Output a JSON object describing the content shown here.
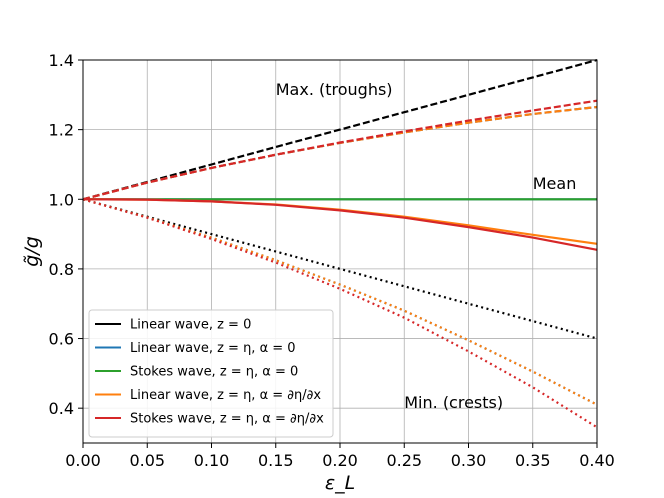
{
  "chart_data": {
    "type": "line",
    "title": "",
    "xlabel": "ε_L",
    "ylabel": "g̃/g",
    "xlim": [
      0.0,
      0.4
    ],
    "ylim": [
      0.3,
      1.4
    ],
    "x_ticks": [
      "0.00",
      "0.05",
      "0.10",
      "0.15",
      "0.20",
      "0.25",
      "0.30",
      "0.35",
      "0.40"
    ],
    "y_ticks": [
      "0.4",
      "0.6",
      "0.8",
      "1.0",
      "1.2",
      "1.4"
    ],
    "grid": true,
    "legend_position": "lower-left",
    "x": [
      0.0,
      0.05,
      0.1,
      0.15,
      0.2,
      0.25,
      0.3,
      0.35,
      0.4
    ],
    "series": [
      {
        "name": "Linear wave, z=0",
        "color": "#000000",
        "group": "max",
        "values": [
          1.0,
          1.05,
          1.1,
          1.15,
          1.2,
          1.25,
          1.3,
          1.35,
          1.4
        ]
      },
      {
        "name": "Linear wave, z=0",
        "color": "#000000",
        "group": "min",
        "values": [
          1.0,
          0.95,
          0.9,
          0.85,
          0.8,
          0.75,
          0.7,
          0.65,
          0.6
        ]
      },
      {
        "name": "Linear wave, z=η, α=0",
        "color": "#1f77b4",
        "group": "max",
        "values": [
          1.0,
          1.048,
          1.09,
          1.128,
          1.162,
          1.192,
          1.22,
          1.245,
          1.265
        ]
      },
      {
        "name": "Linear wave, z=η, α=0",
        "color": "#1f77b4",
        "group": "min",
        "values": [
          1.0,
          0.948,
          0.89,
          0.825,
          0.755,
          0.68,
          0.595,
          0.505,
          0.41
        ]
      },
      {
        "name": "Linear wave, z=η, α=0",
        "color": "#1f77b4",
        "group": "mean",
        "values": [
          1.0,
          1.0,
          1.0,
          1.0,
          1.0,
          1.0,
          1.0,
          1.0,
          1.0
        ]
      },
      {
        "name": "Stokes wave, z=η, α=0",
        "color": "#2ca02c",
        "group": "mean",
        "values": [
          1.0,
          1.0,
          1.0,
          1.0,
          1.0,
          1.0,
          1.0,
          1.0,
          1.0
        ]
      },
      {
        "name": "Linear wave, z=η, α=∂η/∂x",
        "color": "#ff7f0e",
        "group": "max",
        "values": [
          1.0,
          1.048,
          1.09,
          1.128,
          1.162,
          1.192,
          1.22,
          1.245,
          1.265
        ]
      },
      {
        "name": "Linear wave, z=η, α=∂η/∂x",
        "color": "#ff7f0e",
        "group": "mean",
        "values": [
          1.0,
          0.999,
          0.994,
          0.985,
          0.97,
          0.95,
          0.925,
          0.898,
          0.872
        ]
      },
      {
        "name": "Linear wave, z=η, α=∂η/∂x",
        "color": "#ff7f0e",
        "group": "min",
        "values": [
          1.0,
          0.948,
          0.89,
          0.825,
          0.755,
          0.68,
          0.595,
          0.505,
          0.41
        ]
      },
      {
        "name": "Stokes wave, z=η, α=∂η/∂x",
        "color": "#d62728",
        "group": "max",
        "values": [
          1.0,
          1.048,
          1.09,
          1.128,
          1.163,
          1.195,
          1.226,
          1.255,
          1.283
        ]
      },
      {
        "name": "Stokes wave, z=η, α=∂η/∂x",
        "color": "#d62728",
        "group": "mean",
        "values": [
          1.0,
          0.999,
          0.994,
          0.984,
          0.968,
          0.947,
          0.92,
          0.89,
          0.855
        ]
      },
      {
        "name": "Stokes wave, z=η, α=∂η/∂x",
        "color": "#d62728",
        "group": "min",
        "values": [
          1.0,
          0.947,
          0.886,
          0.818,
          0.743,
          0.66,
          0.563,
          0.46,
          0.345
        ]
      }
    ],
    "annotations": [
      {
        "text": "Max. (troughs)",
        "x": 0.15,
        "y": 1.3
      },
      {
        "text": "Mean",
        "x": 0.35,
        "y": 1.03
      },
      {
        "text": "Min. (crests)",
        "x": 0.25,
        "y": 0.4
      }
    ],
    "legend": [
      {
        "text": "Linear wave, z = 0",
        "color": "#000000"
      },
      {
        "text": "Linear wave, z = η, α = 0",
        "color": "#1f77b4"
      },
      {
        "text": "Stokes wave, z = η, α = 0",
        "color": "#2ca02c"
      },
      {
        "text": "Linear wave, z = η, α = ∂η/∂x",
        "color": "#ff7f0e"
      },
      {
        "text": "Stokes wave, z = η, α = ∂η/∂x",
        "color": "#d62728"
      }
    ]
  }
}
